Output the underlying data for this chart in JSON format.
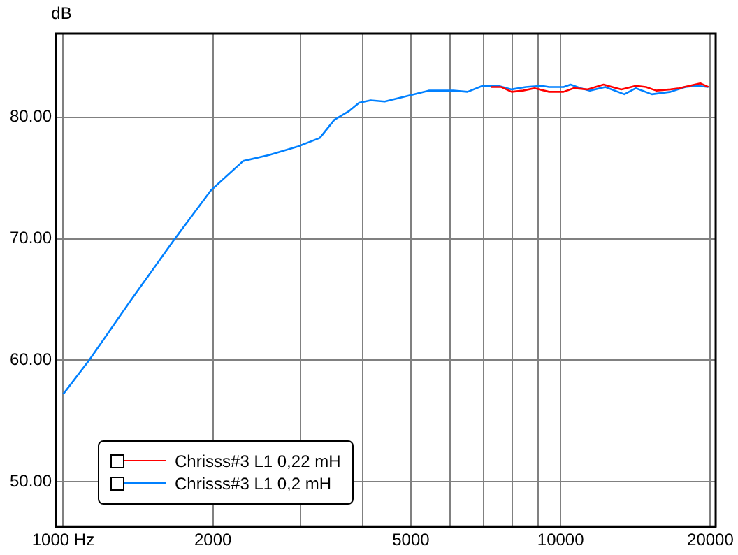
{
  "chart_data": {
    "type": "line",
    "ylabel": "dB",
    "log": "x",
    "xlim": [
      967,
      20500
    ],
    "ylim": [
      46.3,
      86.9
    ],
    "xticks": [
      {
        "value": 1000,
        "label": "1000 Hz"
      },
      2000,
      {
        "value": 3000,
        "label": null
      },
      {
        "value": 4000,
        "label": null
      },
      5000,
      {
        "value": 6000,
        "label": null
      },
      {
        "value": 7000,
        "label": null
      },
      {
        "value": 8000,
        "label": null
      },
      {
        "value": 9000,
        "label": null
      },
      10000,
      20000
    ],
    "yticks": [
      {
        "value": 50,
        "label": "50.00"
      },
      {
        "value": 60,
        "label": "60.00"
      },
      {
        "value": 70,
        "label": "70.00"
      },
      {
        "value": 80,
        "label": "80.00"
      }
    ],
    "grid": true,
    "legend": "bottom left",
    "series": [
      {
        "name": "Chrisss#3 L1 0,22 mH",
        "color": "#ff0000",
        "x": [
          7240,
          7590,
          7970,
          8400,
          8870,
          9480,
          10140,
          10620,
          11320,
          12200,
          12700,
          13250,
          14170,
          14850,
          15570,
          16640,
          17300,
          18160,
          19090,
          19820
        ],
        "values": [
          82.5,
          82.5,
          82.1,
          82.2,
          82.4,
          82.1,
          82.1,
          82.4,
          82.3,
          82.7,
          82.5,
          82.3,
          82.6,
          82.5,
          82.2,
          82.3,
          82.4,
          82.6,
          82.8,
          82.5
        ]
      },
      {
        "name": "Chrisss#3 L1 0,2 mH",
        "color": "#0080ff",
        "x": [
          1000,
          1128,
          1371,
          1677,
          1983,
          2300,
          2595,
          2965,
          3280,
          3508,
          3750,
          3935,
          4150,
          4430,
          4970,
          5430,
          6090,
          6500,
          6970,
          7490,
          7970,
          8510,
          9160,
          9480,
          10140,
          10470,
          10980,
          11450,
          12300,
          13430,
          14170,
          15260,
          16640,
          17800,
          18780,
          19820
        ],
        "values": [
          57.2,
          60,
          65,
          70,
          74,
          76.4,
          76.9,
          77.6,
          78.3,
          79.8,
          80.5,
          81.2,
          81.4,
          81.3,
          81.8,
          82.2,
          82.2,
          82.1,
          82.6,
          82.6,
          82.3,
          82.5,
          82.6,
          82.5,
          82.5,
          82.7,
          82.4,
          82.2,
          82.5,
          81.9,
          82.4,
          81.9,
          82.1,
          82.5,
          82.6,
          82.5
        ]
      }
    ]
  }
}
